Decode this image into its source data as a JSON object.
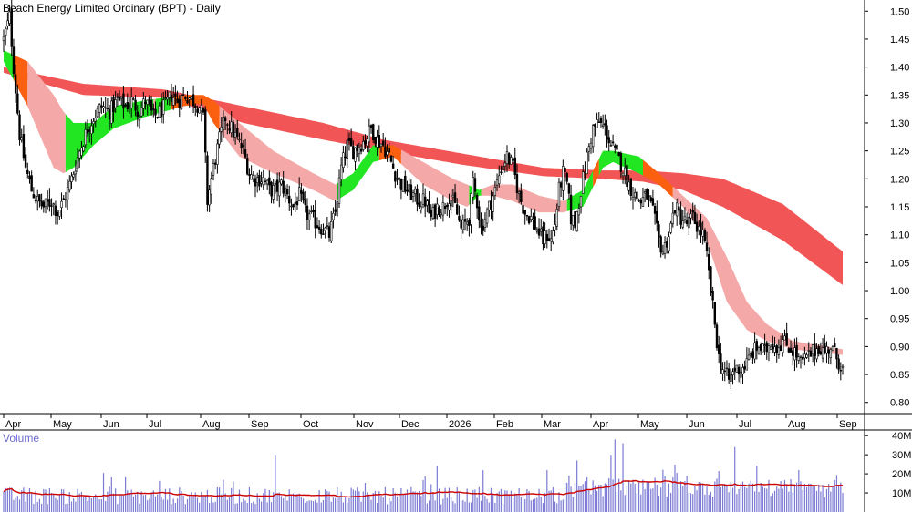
{
  "chart_data": {
    "type": "candlestick",
    "title": "Beach Energy Limited Ordinary (BPT) - Daily",
    "price_axis": {
      "ticks": [
        "1.50",
        "1.45",
        "1.40",
        "1.35",
        "1.30",
        "1.25",
        "1.20",
        "1.15",
        "1.10",
        "1.05",
        "1.00",
        "0.95",
        "0.90",
        "0.85",
        "0.80"
      ],
      "ylim": [
        0.78,
        1.52
      ]
    },
    "x_axis": {
      "labels": [
        "Apr",
        "May",
        "Jun",
        "Jul",
        "Aug",
        "Sep",
        "Oct",
        "Nov",
        "Dec",
        "2026",
        "Feb",
        "Mar",
        "Apr",
        "May",
        "Jun",
        "Jul",
        "Aug",
        "Sep"
      ]
    },
    "price_anchors": [
      [
        0,
        1.45
      ],
      [
        3,
        1.49
      ],
      [
        5,
        1.4
      ],
      [
        8,
        1.28
      ],
      [
        11,
        1.22
      ],
      [
        14,
        1.18
      ],
      [
        17,
        1.16
      ],
      [
        20,
        1.15
      ],
      [
        24,
        1.16
      ],
      [
        27,
        1.14
      ],
      [
        30,
        1.16
      ],
      [
        34,
        1.2
      ],
      [
        38,
        1.25
      ],
      [
        42,
        1.29
      ],
      [
        45,
        1.31
      ],
      [
        49,
        1.33
      ],
      [
        53,
        1.32
      ],
      [
        57,
        1.34
      ],
      [
        61,
        1.33
      ],
      [
        64,
        1.34
      ],
      [
        68,
        1.32
      ],
      [
        71,
        1.34
      ],
      [
        75,
        1.31
      ],
      [
        78,
        1.32
      ],
      [
        81,
        1.33
      ],
      [
        84,
        1.35
      ],
      [
        87,
        1.34
      ],
      [
        91,
        1.35
      ],
      [
        95,
        1.34
      ],
      [
        98,
        1.33
      ],
      [
        100,
        1.31
      ],
      [
        102,
        1.16
      ],
      [
        105,
        1.22
      ],
      [
        108,
        1.27
      ],
      [
        111,
        1.31
      ],
      [
        114,
        1.29
      ],
      [
        117,
        1.27
      ],
      [
        120,
        1.25
      ],
      [
        123,
        1.21
      ],
      [
        126,
        1.2
      ],
      [
        130,
        1.2
      ],
      [
        133,
        1.18
      ],
      [
        136,
        1.18
      ],
      [
        139,
        1.19
      ],
      [
        142,
        1.17
      ],
      [
        145,
        1.15
      ],
      [
        148,
        1.17
      ],
      [
        151,
        1.14
      ],
      [
        154,
        1.13
      ],
      [
        157,
        1.12
      ],
      [
        160,
        1.11
      ],
      [
        163,
        1.1
      ],
      [
        166,
        1.14
      ],
      [
        169,
        1.22
      ],
      [
        172,
        1.26
      ],
      [
        175,
        1.25
      ],
      [
        178,
        1.26
      ],
      [
        181,
        1.27
      ],
      [
        184,
        1.29
      ],
      [
        187,
        1.27
      ],
      [
        190,
        1.26
      ],
      [
        193,
        1.24
      ],
      [
        196,
        1.21
      ],
      [
        199,
        1.19
      ],
      [
        202,
        1.18
      ],
      [
        205,
        1.17
      ],
      [
        208,
        1.16
      ],
      [
        211,
        1.16
      ],
      [
        214,
        1.13
      ],
      [
        217,
        1.15
      ],
      [
        220,
        1.15
      ],
      [
        223,
        1.17
      ],
      [
        226,
        1.15
      ],
      [
        229,
        1.11
      ],
      [
        231,
        1.12
      ],
      [
        233,
        1.13
      ],
      [
        235,
        1.19
      ],
      [
        237,
        1.16
      ],
      [
        239,
        1.11
      ],
      [
        241,
        1.13
      ],
      [
        243,
        1.15
      ],
      [
        246,
        1.18
      ],
      [
        249,
        1.22
      ],
      [
        252,
        1.24
      ],
      [
        255,
        1.22
      ],
      [
        258,
        1.17
      ],
      [
        261,
        1.14
      ],
      [
        264,
        1.13
      ],
      [
        267,
        1.11
      ],
      [
        270,
        1.09
      ],
      [
        272,
        1.1
      ],
      [
        274,
        1.09
      ],
      [
        276,
        1.12
      ],
      [
        278,
        1.18
      ],
      [
        280,
        1.21
      ],
      [
        282,
        1.19
      ],
      [
        284,
        1.13
      ],
      [
        286,
        1.12
      ],
      [
        289,
        1.18
      ],
      [
        292,
        1.24
      ],
      [
        295,
        1.29
      ],
      [
        298,
        1.3
      ],
      [
        301,
        1.29
      ],
      [
        304,
        1.26
      ],
      [
        307,
        1.24
      ],
      [
        310,
        1.22
      ],
      [
        313,
        1.19
      ],
      [
        316,
        1.17
      ],
      [
        319,
        1.16
      ],
      [
        322,
        1.17
      ],
      [
        325,
        1.14
      ],
      [
        328,
        1.09
      ],
      [
        330,
        1.07
      ],
      [
        333,
        1.1
      ],
      [
        336,
        1.15
      ],
      [
        339,
        1.13
      ],
      [
        342,
        1.12
      ],
      [
        345,
        1.13
      ],
      [
        348,
        1.11
      ],
      [
        350,
        1.1
      ],
      [
        352,
        1.06
      ],
      [
        354,
        1.0
      ],
      [
        356,
        0.94
      ],
      [
        358,
        0.88
      ],
      [
        360,
        0.86
      ],
      [
        363,
        0.84
      ],
      [
        366,
        0.86
      ],
      [
        369,
        0.86
      ],
      [
        372,
        0.87
      ],
      [
        375,
        0.89
      ],
      [
        378,
        0.9
      ],
      [
        381,
        0.89
      ],
      [
        384,
        0.91
      ],
      [
        387,
        0.9
      ],
      [
        390,
        0.91
      ],
      [
        393,
        0.9
      ],
      [
        396,
        0.89
      ],
      [
        399,
        0.87
      ],
      [
        402,
        0.88
      ],
      [
        405,
        0.89
      ],
      [
        408,
        0.9
      ],
      [
        411,
        0.89
      ],
      [
        414,
        0.9
      ],
      [
        417,
        0.88
      ],
      [
        420,
        0.86
      ]
    ],
    "bands": {
      "long_term_ema_band": {
        "color": "#f25555",
        "anchors": [
          [
            0,
            1.39,
            1.4
          ],
          [
            40,
            1.35,
            1.37
          ],
          [
            80,
            1.345,
            1.36
          ],
          [
            120,
            1.3,
            1.33
          ],
          [
            160,
            1.27,
            1.3
          ],
          [
            190,
            1.25,
            1.27
          ],
          [
            230,
            1.225,
            1.245
          ],
          [
            270,
            1.205,
            1.22
          ],
          [
            300,
            1.2,
            1.215
          ],
          [
            320,
            1.195,
            1.215
          ],
          [
            340,
            1.18,
            1.21
          ],
          [
            360,
            1.15,
            1.2
          ],
          [
            390,
            1.09,
            1.155
          ],
          [
            420,
            1.01,
            1.07
          ]
        ]
      },
      "short_term_ema_band": {
        "color_rising": "#22e622",
        "color_falling": "#fa6010",
        "color_lagging": "#f5a8a8",
        "anchors": [
          [
            0,
            1.41,
            1.43
          ],
          [
            12,
            1.33,
            1.41
          ],
          [
            25,
            1.22,
            1.35
          ],
          [
            30,
            1.21,
            1.32
          ],
          [
            35,
            1.22,
            1.3
          ],
          [
            45,
            1.26,
            1.3
          ],
          [
            55,
            1.29,
            1.33
          ],
          [
            70,
            1.31,
            1.34
          ],
          [
            90,
            1.33,
            1.35
          ],
          [
            100,
            1.335,
            1.35
          ],
          [
            105,
            1.3,
            1.34
          ],
          [
            118,
            1.24,
            1.3
          ],
          [
            135,
            1.21,
            1.25
          ],
          [
            155,
            1.18,
            1.21
          ],
          [
            166,
            1.16,
            1.19
          ],
          [
            175,
            1.18,
            1.21
          ],
          [
            185,
            1.23,
            1.26
          ],
          [
            195,
            1.24,
            1.26
          ],
          [
            210,
            1.19,
            1.23
          ],
          [
            225,
            1.16,
            1.2
          ],
          [
            232,
            1.15,
            1.19
          ],
          [
            238,
            1.17,
            1.18
          ],
          [
            245,
            1.17,
            1.19
          ],
          [
            255,
            1.16,
            1.19
          ],
          [
            268,
            1.14,
            1.17
          ],
          [
            280,
            1.14,
            1.16
          ],
          [
            290,
            1.15,
            1.18
          ],
          [
            300,
            1.22,
            1.25
          ],
          [
            305,
            1.23,
            1.25
          ],
          [
            318,
            1.21,
            1.24
          ],
          [
            328,
            1.19,
            1.21
          ],
          [
            340,
            1.15,
            1.17
          ],
          [
            352,
            1.09,
            1.13
          ],
          [
            362,
            0.98,
            1.06
          ],
          [
            372,
            0.93,
            0.98
          ],
          [
            382,
            0.91,
            0.94
          ],
          [
            395,
            0.895,
            0.91
          ],
          [
            420,
            0.885,
            0.895
          ]
        ]
      }
    },
    "volume": {
      "label": "Volume",
      "ticks": [
        "40M",
        "30M",
        "20M",
        "10M"
      ],
      "ylim": [
        0,
        42
      ],
      "unit": "M",
      "moving_average_color": "#cc0000",
      "bar_color": "#7b7bd4",
      "spikes": [
        [
          136,
          30
        ],
        [
          217,
          24
        ],
        [
          272,
          22
        ],
        [
          287,
          27
        ],
        [
          304,
          30
        ],
        [
          310,
          36
        ],
        [
          306,
          38
        ],
        [
          366,
          34
        ],
        [
          398,
          22
        ],
        [
          418,
          14
        ]
      ]
    }
  }
}
